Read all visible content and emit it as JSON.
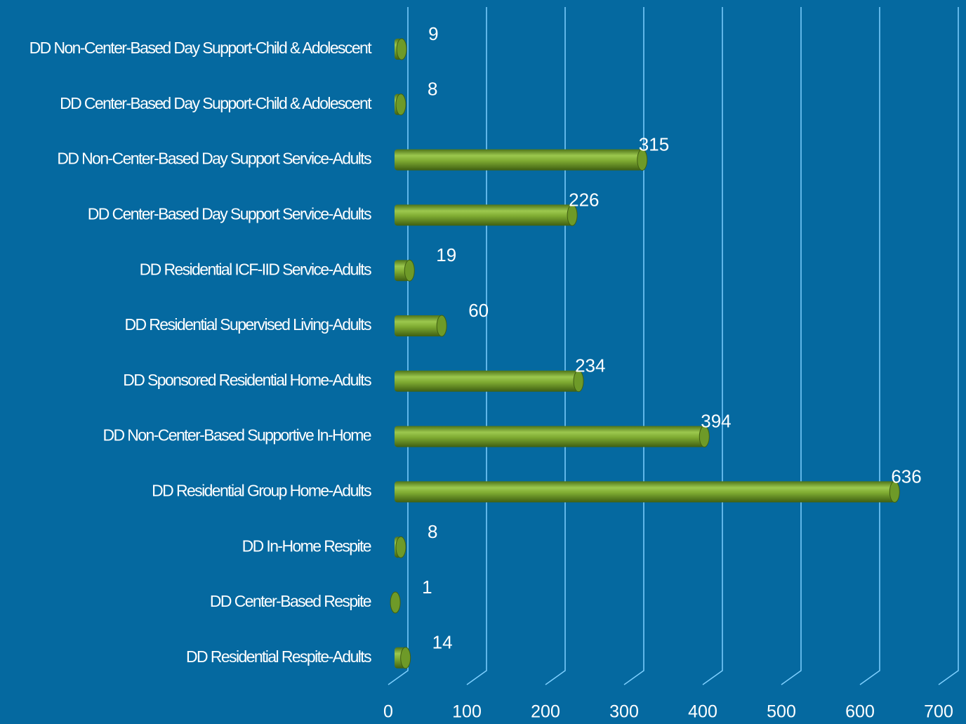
{
  "chart_data": {
    "type": "bar",
    "orientation": "horizontal",
    "categories": [
      "DD Non-Center-Based Day Support-Child & Adolescent",
      "DD Center-Based Day Support-Child & Adolescent",
      "DD Non-Center-Based Day Support Service-Adults",
      "DD Center-Based Day Support Service-Adults",
      "DD Residential ICF-IID Service-Adults",
      "DD Residential Supervised Living-Adults",
      "DD Sponsored Residential Home-Adults",
      "DD Non-Center-Based Supportive In-Home",
      "DD Residential Group Home-Adults",
      "DD In-Home Respite",
      "DD Center-Based Respite",
      "DD Residential Respite-Adults"
    ],
    "values": [
      9,
      8,
      315,
      226,
      19,
      60,
      234,
      394,
      636,
      8,
      1,
      14
    ],
    "color": "#78a42e",
    "xlim": [
      0,
      700
    ],
    "xticks": [
      0,
      100,
      200,
      300,
      400,
      500,
      600,
      700
    ],
    "grid": true
  }
}
